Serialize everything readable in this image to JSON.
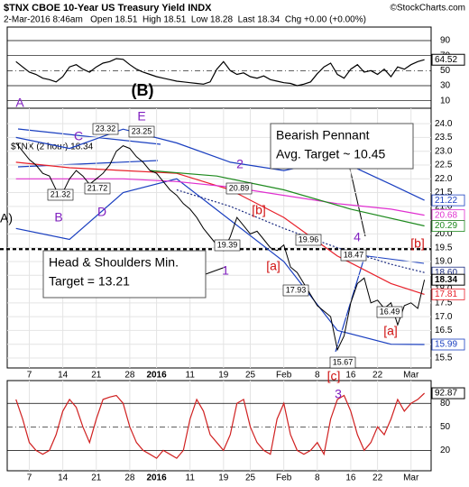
{
  "chart_data": {
    "type": "line",
    "title": "$TNX CBOE 10-Year US Treasury Yield INDX",
    "credit": "©StockCharts.com",
    "subtitle": "2-Mar-2016 8:46am   Open 18.51  High 18.51  Low 18.28  Last 18.34  Chg +0.00 (+0.00%)",
    "legend_label": "$TNX (2 hour) 18.34",
    "xlim": [
      -1.3,
      62
    ],
    "xticks": [
      {
        "value": 2,
        "label": "7"
      },
      {
        "value": 7,
        "label": "14"
      },
      {
        "value": 12,
        "label": "21"
      },
      {
        "value": 17,
        "label": "28"
      },
      {
        "value": 21,
        "label": "2016"
      },
      {
        "value": 26,
        "label": "11"
      },
      {
        "value": 31,
        "label": "19"
      },
      {
        "value": 35,
        "label": "25"
      },
      {
        "value": 40,
        "label": "Feb"
      },
      {
        "value": 45,
        "label": "8"
      },
      {
        "value": 50,
        "label": "16"
      },
      {
        "value": 54,
        "label": "22"
      },
      {
        "value": 59,
        "label": "Mar"
      }
    ],
    "ylim": [
      15.14,
      24.56
    ],
    "yticks": [
      15.5,
      {
        "value": 16,
        "label": "16.0"
      },
      16.5,
      {
        "value": 17,
        "label": "17.0"
      },
      17.5,
      {
        "value": 18,
        "label": "18.0"
      },
      18.5,
      {
        "value": 19,
        "label": "19.0"
      },
      19.5,
      {
        "value": 20,
        "label": "20.0"
      },
      20.5,
      {
        "value": 21,
        "label": "21.0"
      },
      21.5,
      {
        "value": 22,
        "label": "22.0"
      },
      22.5,
      {
        "value": 23,
        "label": "23.0"
      },
      23.5,
      {
        "value": 24,
        "label": "24.0"
      }
    ],
    "series": [
      {
        "name": "$TNX",
        "color": "#000000",
        "values": [
          23.3,
          23.0,
          22.7,
          22.5,
          22.2,
          22.1,
          21.6,
          21.5,
          22.0,
          22.3,
          22.1,
          21.8,
          22.0,
          22.2,
          22.5,
          23.0,
          23.2,
          23.1,
          22.8,
          22.6,
          22.3,
          22.2,
          21.9,
          21.6,
          21.4,
          21.1,
          20.9,
          20.6,
          20.2,
          19.9,
          19.6,
          19.4,
          19.9,
          20.6,
          20.3,
          20.0,
          20.1,
          19.8,
          19.5,
          19.4,
          19.6,
          18.8,
          18.6,
          18.2,
          17.8,
          17.4,
          17.2,
          17.0,
          15.8,
          16.3,
          17.5,
          18.2,
          18.4,
          17.5,
          17.6,
          17.3,
          17.5,
          16.7,
          17.4,
          17.5,
          17.3,
          18.34
        ]
      }
    ],
    "overlays": [
      {
        "color": "#1a3fc0",
        "x": [
          0,
          8,
          16,
          24,
          32,
          40,
          48,
          56,
          61
        ],
        "values": [
          23.5,
          23.1,
          23.8,
          23.3,
          22.6,
          22.3,
          22.7,
          21.8,
          21.22
        ]
      },
      {
        "color": "#1a3fc0",
        "x": [
          0,
          8,
          16,
          24,
          32,
          40,
          48,
          56,
          61
        ],
        "values": [
          20.2,
          19.8,
          21.5,
          22.0,
          20.5,
          19.0,
          16.5,
          16.0,
          15.99
        ]
      },
      {
        "color": "#e8202a",
        "x": [
          0,
          8,
          16,
          24,
          32,
          40,
          48,
          56,
          61
        ],
        "values": [
          22.6,
          22.4,
          22.3,
          22.2,
          21.6,
          20.6,
          19.2,
          18.2,
          17.81
        ]
      },
      {
        "color": "#e030d0",
        "x": [
          0,
          8,
          16,
          24,
          32,
          40,
          48,
          56,
          61
        ],
        "values": [
          22.0,
          22.0,
          22.0,
          21.9,
          21.7,
          21.4,
          21.1,
          20.9,
          20.68
        ]
      },
      {
        "color": "#1e8a1e",
        "x": [
          20,
          30,
          40,
          50,
          61
        ],
        "values": [
          22.3,
          22.1,
          21.6,
          20.9,
          20.29
        ]
      },
      {
        "color": "#1a2a80",
        "dashed": true,
        "x": [
          24,
          32,
          40,
          48,
          56,
          61
        ],
        "values": [
          21.6,
          21.0,
          20.2,
          19.5,
          18.9,
          18.6
        ],
        "value_labels": [
          null,
          null,
          null,
          null,
          null,
          "18.60"
        ]
      }
    ],
    "hline": 19.45,
    "annotations": [
      "A",
      "B",
      "C",
      "D",
      "E",
      "2",
      "1",
      "[a]",
      "[b]",
      "4",
      "[b]",
      "[a]",
      "[c]",
      "3",
      "(B)",
      "A)",
      "23.32",
      "23.25",
      "21.32",
      "21.72",
      "20.89",
      "19.39",
      "19.96",
      "17.93",
      "18.47",
      "16.49",
      "15.67"
    ],
    "boxes": [
      [
        "Bearish Pennant",
        "Avg. Target ~ 10.45"
      ],
      [
        "Head & Shoulders Min.",
        "Target = 13.21"
      ]
    ],
    "rsi": {
      "ylim": [
        0,
        108
      ],
      "yticks": [
        10,
        30,
        50,
        70,
        90
      ],
      "values": [
        62,
        55,
        48,
        45,
        40,
        38,
        35,
        42,
        55,
        58,
        52,
        48,
        55,
        60,
        62,
        66,
        65,
        58,
        52,
        48,
        45,
        42,
        40,
        38,
        36,
        35,
        34,
        33,
        32,
        35,
        52,
        62,
        50,
        45,
        47,
        42,
        40,
        43,
        38,
        36,
        34,
        33,
        30,
        32,
        35,
        46,
        55,
        60,
        45,
        40,
        52,
        58,
        48,
        50,
        45,
        52,
        42,
        55,
        52,
        58,
        62,
        64.52
      ]
    },
    "stoch": {
      "ylim": [
        -6,
        109
      ],
      "yticks": [
        20,
        50,
        80
      ],
      "values": [
        85,
        60,
        30,
        20,
        15,
        20,
        40,
        70,
        85,
        75,
        50,
        30,
        60,
        85,
        88,
        90,
        80,
        50,
        30,
        20,
        15,
        10,
        20,
        15,
        10,
        20,
        60,
        85,
        70,
        40,
        30,
        20,
        40,
        80,
        85,
        50,
        30,
        20,
        15,
        60,
        80,
        40,
        20,
        15,
        20,
        30,
        15,
        60,
        85,
        90,
        70,
        40,
        20,
        30,
        50,
        40,
        60,
        85,
        70,
        80,
        85,
        92.87
      ]
    }
  }
}
